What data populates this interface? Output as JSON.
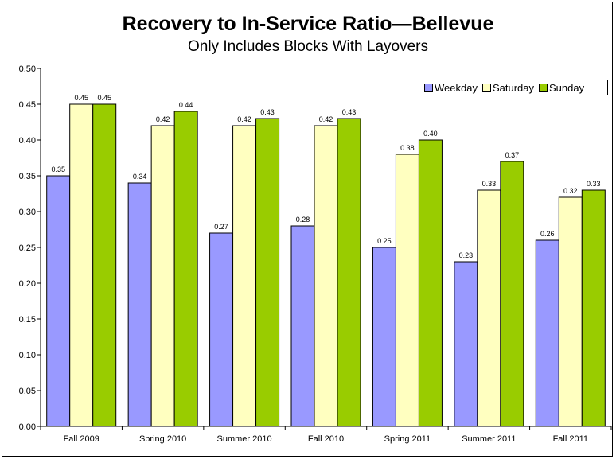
{
  "chart_data": {
    "type": "bar",
    "title": "Recovery to In-Service Ratio—Bellevue",
    "subtitle": "Only Includes Blocks With Layovers",
    "xlabel": "",
    "ylabel": "",
    "ylim": [
      0,
      0.5
    ],
    "yticks": [
      "0.00",
      "0.05",
      "0.10",
      "0.15",
      "0.20",
      "0.25",
      "0.30",
      "0.35",
      "0.40",
      "0.45",
      "0.50"
    ],
    "categories": [
      "Fall 2009",
      "Spring 2010",
      "Summer 2010",
      "Fall 2010",
      "Spring 2011",
      "Summer 2011",
      "Fall 2011"
    ],
    "series": [
      {
        "name": "Weekday",
        "color": "#9999FF",
        "values": [
          0.35,
          0.34,
          0.27,
          0.28,
          0.25,
          0.23,
          0.26
        ]
      },
      {
        "name": "Saturday",
        "color": "#FFFFC0",
        "values": [
          0.45,
          0.42,
          0.42,
          0.42,
          0.38,
          0.33,
          0.32
        ]
      },
      {
        "name": "Sunday",
        "color": "#99CC00",
        "values": [
          0.45,
          0.44,
          0.43,
          0.43,
          0.4,
          0.37,
          0.33
        ]
      }
    ],
    "data_labels": [
      [
        "0.35",
        "0.34",
        "0.27",
        "0.28",
        "0.25",
        "0.23",
        "0.26"
      ],
      [
        "0.45",
        "0.42",
        "0.42",
        "0.42",
        "0.38",
        "0.33",
        "0.32"
      ],
      [
        "0.45",
        "0.44",
        "0.43",
        "0.43",
        "0.40",
        "0.37",
        "0.33"
      ]
    ],
    "legend_position": "top-right",
    "grid": false
  }
}
